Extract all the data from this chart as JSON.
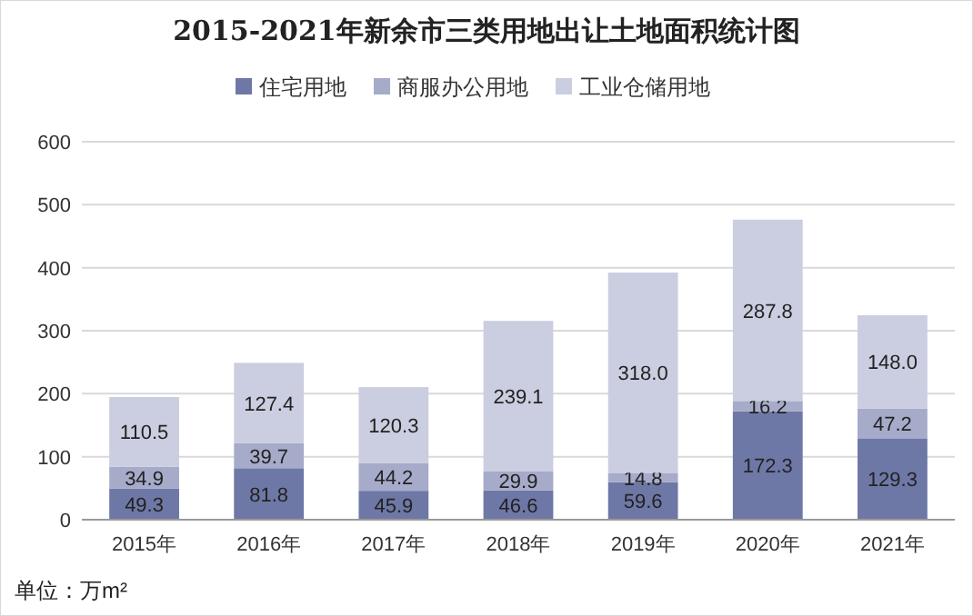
{
  "chart_data": {
    "type": "bar",
    "title": "2015-2021年新余市三类用地出让土地面积统计图",
    "categories": [
      "2015年",
      "2016年",
      "2017年",
      "2018年",
      "2019年",
      "2020年",
      "2021年"
    ],
    "stacked": true,
    "ylim": [
      0,
      600
    ],
    "yticks": [
      0,
      100,
      200,
      300,
      400,
      500,
      600
    ],
    "grid": "y",
    "legend": "top",
    "annotations": [
      "单位：万m²"
    ],
    "series": [
      {
        "name": "住宅用地",
        "color": "#6e78a6",
        "values": [
          49.3,
          81.8,
          45.9,
          46.6,
          59.6,
          172.3,
          129.3
        ],
        "value_labels": [
          "49.3",
          "81.8",
          "45.9",
          "46.6",
          "59.6",
          "172.3",
          "129.3"
        ]
      },
      {
        "name": "商服办公用地",
        "color": "#a6abca",
        "values": [
          34.9,
          39.7,
          44.2,
          29.9,
          14.8,
          16.2,
          47.2
        ],
        "value_labels": [
          "34.9",
          "39.7",
          "44.2",
          "29.9",
          "14.8",
          "16.2",
          "47.2"
        ]
      },
      {
        "name": "工业仓储用地",
        "color": "#cbcde0",
        "values": [
          110.5,
          127.4,
          120.3,
          239.1,
          318.0,
          287.8,
          148.0
        ],
        "value_labels": [
          "110.5",
          "127.4",
          "120.3",
          "239.1",
          "318.0",
          "287.8",
          "148.0"
        ]
      }
    ]
  }
}
